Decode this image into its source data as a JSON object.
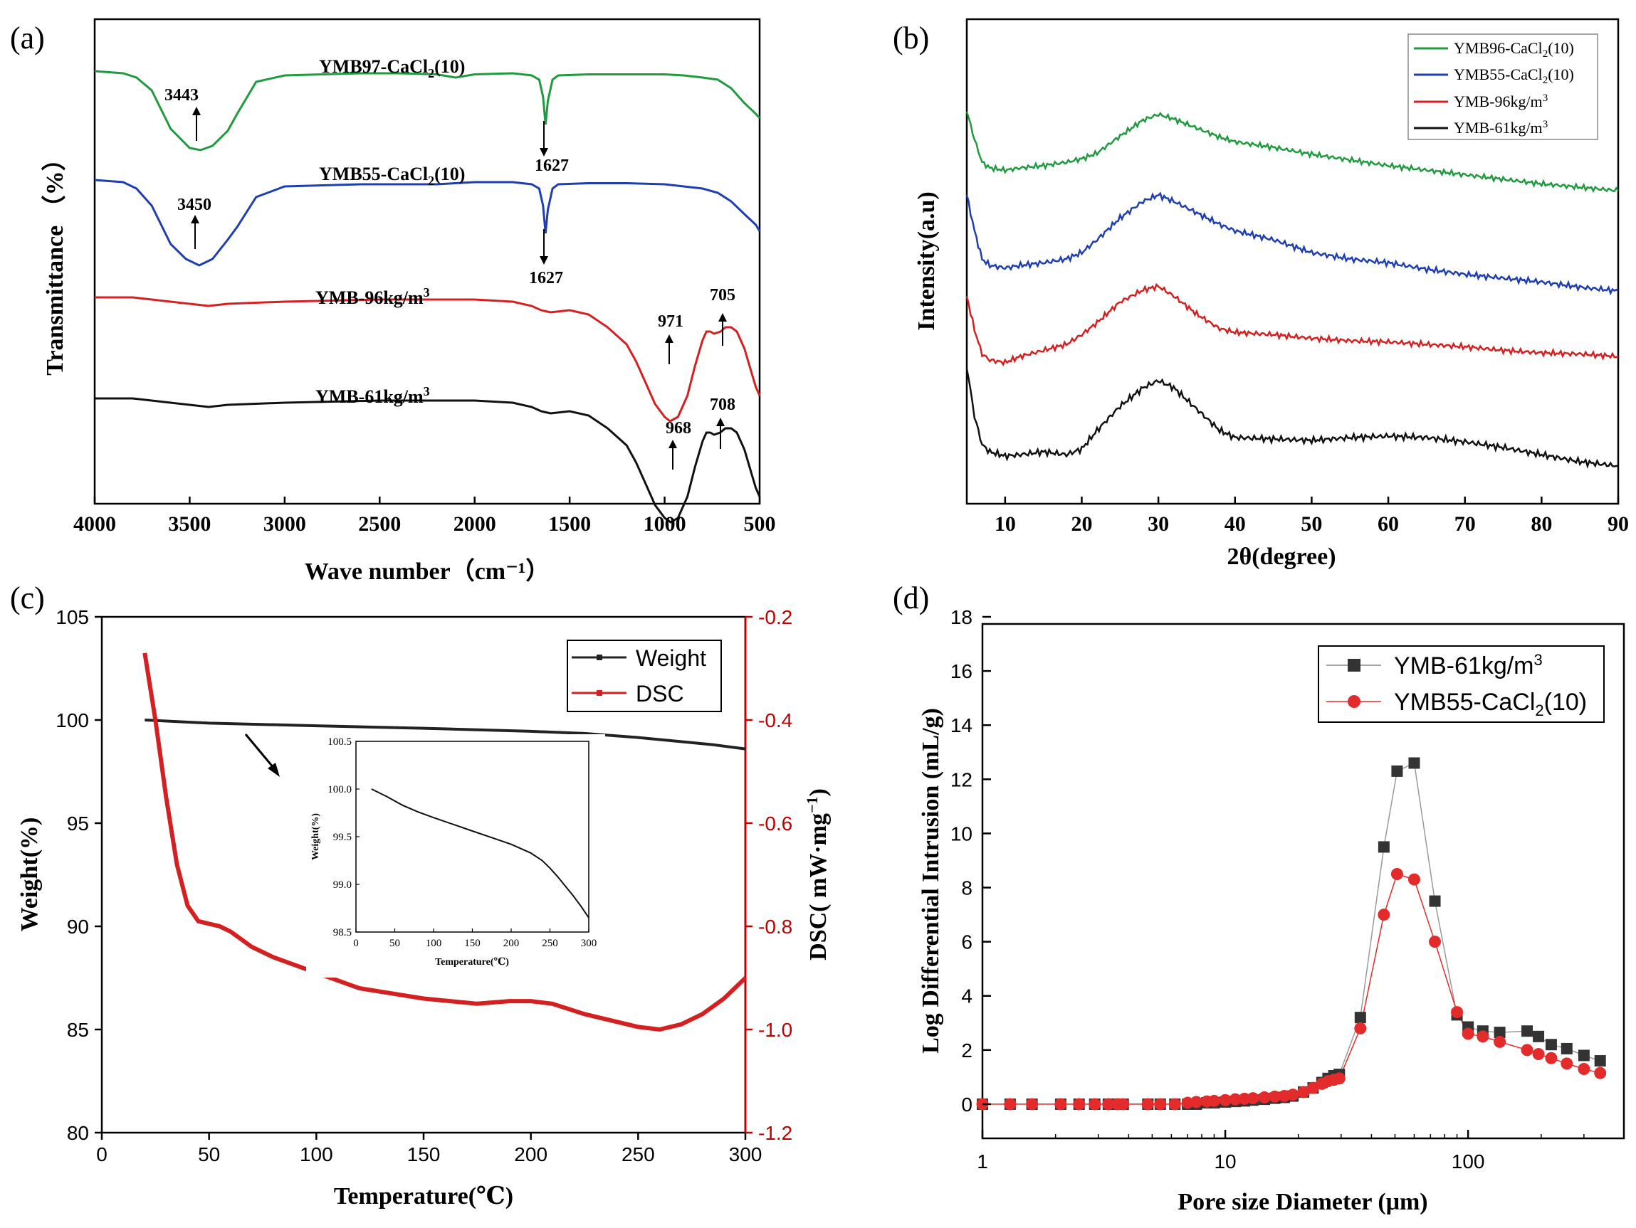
{
  "chart_data": [
    {
      "panel": "(a)",
      "type": "line",
      "title": "",
      "xlabel": "Wave number（cm⁻¹）",
      "ylabel": "Transmittance （%）",
      "xlim": [
        4000,
        500
      ],
      "x_ticks": [
        "4000",
        "3500",
        "3000",
        "2500",
        "2000",
        "1500",
        "1000",
        "500"
      ],
      "series": [
        {
          "name": "YMB97-CaCl₂(10)",
          "color": "#1f9a3e",
          "x": [
            4000,
            3850,
            3780,
            3700,
            3600,
            3500,
            3443,
            3380,
            3300,
            3250,
            3150,
            3000,
            2600,
            2400,
            2200,
            2100,
            2000,
            1800,
            1700,
            1660,
            1640,
            1627,
            1615,
            1590,
            1560,
            1400,
            1200,
            1000,
            900,
            800,
            720,
            650,
            580,
            520,
            500
          ],
          "y": [
            100,
            99,
            97,
            91,
            73,
            64,
            63,
            65,
            72,
            80,
            95,
            98,
            99,
            99,
            98.5,
            97,
            98.5,
            99,
            98,
            96,
            88,
            75,
            86,
            96,
            98,
            98.5,
            98.5,
            98.5,
            98,
            97,
            96,
            92,
            85,
            80,
            78
          ]
        },
        {
          "name": "YMB55-CaCl₂(10)",
          "color": "#1f3eb0",
          "x": [
            4000,
            3850,
            3780,
            3700,
            3600,
            3520,
            3450,
            3380,
            3300,
            3250,
            3150,
            3000,
            2600,
            2400,
            2200,
            2000,
            1800,
            1700,
            1660,
            1640,
            1627,
            1615,
            1590,
            1560,
            1400,
            1200,
            1000,
            900,
            800,
            720,
            650,
            580,
            520,
            500
          ],
          "y": [
            100,
            99,
            96,
            88,
            70,
            63,
            60,
            63,
            72,
            78,
            92,
            97,
            98,
            98,
            98,
            99,
            99,
            98,
            96,
            88,
            75,
            86,
            96,
            98,
            98.5,
            98.5,
            98,
            97,
            96,
            94,
            90,
            84,
            79,
            76
          ]
        },
        {
          "name": "YMB-96kg/m³",
          "color": "#d42020",
          "x": [
            4000,
            3800,
            3700,
            3500,
            3400,
            3300,
            3000,
            2500,
            2200,
            2000,
            1800,
            1700,
            1650,
            1600,
            1500,
            1400,
            1300,
            1200,
            1150,
            1100,
            1050,
            1000,
            971,
            930,
            880,
            840,
            800,
            780,
            760,
            740,
            705,
            680,
            650,
            620,
            580,
            540,
            520,
            500
          ],
          "y": [
            100,
            100,
            99.5,
            98.5,
            98,
            98.5,
            99,
            99.5,
            99.5,
            99.5,
            99,
            98,
            97,
            96.5,
            97,
            96,
            93,
            89,
            85,
            80,
            75,
            72,
            71,
            72,
            77,
            84,
            90,
            92,
            92,
            91.5,
            92,
            93,
            93,
            92,
            88,
            82,
            79,
            77
          ]
        },
        {
          "name": "YMB-61kg/m³",
          "color": "#111111",
          "x": [
            4000,
            3800,
            3700,
            3500,
            3400,
            3300,
            3000,
            2500,
            2200,
            2000,
            1800,
            1700,
            1650,
            1600,
            1500,
            1400,
            1300,
            1200,
            1150,
            1100,
            1050,
            1000,
            968,
            930,
            880,
            840,
            800,
            780,
            760,
            740,
            708,
            680,
            650,
            620,
            580,
            540,
            520,
            500
          ],
          "y": [
            100,
            100,
            99.5,
            98.5,
            98,
            98.5,
            99,
            99.5,
            99.5,
            99.5,
            99,
            98,
            97,
            96.5,
            97,
            96,
            93,
            89,
            85,
            80,
            75,
            72,
            71,
            72,
            77,
            84,
            90,
            92,
            92,
            91.5,
            92,
            93,
            93,
            92,
            88,
            82,
            79,
            77
          ]
        }
      ],
      "annotations": [
        "3443",
        "1627",
        "3450",
        "1627",
        "971",
        "705",
        "968",
        "708"
      ],
      "curve_labels": [
        "YMB97-CaCl₂(10)",
        "YMB55-CaCl₂(10)",
        "YMB-96kg/m³",
        "YMB-61kg/m³"
      ]
    },
    {
      "panel": "(b)",
      "type": "line",
      "title": "",
      "xlabel": "2θ(degree)",
      "ylabel": "Intensity(a.u)",
      "xlim": [
        5,
        90
      ],
      "x_ticks": [
        "10",
        "20",
        "30",
        "40",
        "50",
        "60",
        "70",
        "80",
        "90"
      ],
      "legend": [
        "YMB96-CaCl₂(10)",
        "YMB55-CaCl₂(10)",
        "YMB-96kg/m³",
        "YMB-61kg/m³"
      ],
      "legend_placement": "top-right",
      "series": [
        {
          "name": "YMB96-CaCl₂(10)",
          "color": "#1f9a3e",
          "x": [
            5,
            6,
            7,
            8,
            10,
            12,
            15,
            18,
            20,
            22,
            25,
            28,
            30,
            32,
            35,
            38,
            40,
            45,
            50,
            55,
            60,
            65,
            70,
            75,
            80,
            85,
            90
          ],
          "y": [
            1.0,
            0.75,
            0.55,
            0.5,
            0.48,
            0.5,
            0.52,
            0.55,
            0.58,
            0.63,
            0.78,
            0.92,
            0.97,
            0.93,
            0.85,
            0.77,
            0.73,
            0.68,
            0.62,
            0.57,
            0.52,
            0.48,
            0.44,
            0.4,
            0.36,
            0.33,
            0.3
          ]
        },
        {
          "name": "YMB55-CaCl₂(10)",
          "color": "#1f3eb0",
          "x": [
            5,
            6,
            7,
            8,
            10,
            12,
            15,
            18,
            20,
            22,
            25,
            28,
            30,
            32,
            35,
            38,
            40,
            45,
            50,
            55,
            60,
            65,
            70,
            75,
            80,
            85,
            90
          ],
          "y": [
            1.0,
            0.72,
            0.5,
            0.45,
            0.43,
            0.45,
            0.47,
            0.5,
            0.55,
            0.65,
            0.82,
            0.95,
            1.0,
            0.95,
            0.86,
            0.77,
            0.72,
            0.65,
            0.55,
            0.5,
            0.47,
            0.42,
            0.38,
            0.35,
            0.32,
            0.28,
            0.25
          ]
        },
        {
          "name": "YMB-96kg/m³",
          "color": "#d42020",
          "x": [
            5,
            6,
            7,
            8,
            10,
            12,
            15,
            18,
            20,
            22,
            25,
            28,
            30,
            32,
            35,
            38,
            40,
            45,
            50,
            55,
            60,
            65,
            70,
            75,
            80,
            85,
            90
          ],
          "y": [
            1.0,
            0.72,
            0.52,
            0.47,
            0.45,
            0.5,
            0.55,
            0.6,
            0.68,
            0.78,
            0.95,
            1.05,
            1.08,
            1.0,
            0.85,
            0.73,
            0.7,
            0.68,
            0.65,
            0.63,
            0.62,
            0.6,
            0.58,
            0.55,
            0.53,
            0.52,
            0.5
          ]
        },
        {
          "name": "YMB-61kg/m³",
          "color": "#111111",
          "x": [
            5,
            6,
            7,
            8,
            10,
            12,
            15,
            18,
            20,
            22,
            25,
            28,
            30,
            32,
            35,
            38,
            40,
            45,
            50,
            55,
            60,
            65,
            70,
            75,
            80,
            85,
            90
          ],
          "y": [
            1.0,
            0.65,
            0.45,
            0.4,
            0.37,
            0.38,
            0.4,
            0.38,
            0.42,
            0.55,
            0.72,
            0.85,
            0.9,
            0.85,
            0.7,
            0.55,
            0.5,
            0.49,
            0.48,
            0.5,
            0.51,
            0.5,
            0.47,
            0.43,
            0.38,
            0.33,
            0.3
          ]
        }
      ]
    },
    {
      "panel": "(c)",
      "type": "line",
      "title": "",
      "xlabel": "Temperature(℃)",
      "ylabel": "Weight(%)",
      "y2label": "DSC( mW·mg⁻¹)",
      "xlim": [
        0,
        300
      ],
      "ylim": [
        80,
        105
      ],
      "y2lim": [
        -1.2,
        -0.2
      ],
      "x_ticks": [
        "0",
        "50",
        "100",
        "150",
        "200",
        "250",
        "300"
      ],
      "y_ticks": [
        "80",
        "85",
        "90",
        "95",
        "100",
        "105"
      ],
      "y2_ticks": [
        "-1.2",
        "-1.0",
        "-0.8",
        "-0.6",
        "-0.4",
        "-0.2"
      ],
      "legend": [
        "Weight",
        "DSC"
      ],
      "legend_placement": "top-right",
      "series": [
        {
          "name": "Weight",
          "color": "#222222",
          "axis": "left",
          "x": [
            20,
            50,
            100,
            150,
            200,
            225,
            250,
            270,
            285,
            300
          ],
          "y": [
            100.0,
            99.85,
            99.72,
            99.6,
            99.45,
            99.35,
            99.15,
            98.95,
            98.8,
            98.6
          ]
        },
        {
          "name": "DSC",
          "color": "#d42020",
          "axis": "right",
          "x": [
            20,
            25,
            30,
            35,
            40,
            45,
            50,
            55,
            60,
            70,
            80,
            100,
            120,
            150,
            175,
            190,
            200,
            210,
            225,
            250,
            260,
            270,
            280,
            290,
            300
          ],
          "y": [
            -0.27,
            -0.4,
            -0.55,
            -0.68,
            -0.76,
            -0.79,
            -0.795,
            -0.8,
            -0.81,
            -0.84,
            -0.86,
            -0.89,
            -0.92,
            -0.94,
            -0.95,
            -0.945,
            -0.945,
            -0.95,
            -0.97,
            -0.995,
            -1.0,
            -0.99,
            -0.97,
            -0.94,
            -0.9
          ]
        }
      ],
      "inset": {
        "xlabel": "Temperature(℃)",
        "ylabel": "Weight(%)",
        "xlim": [
          0,
          300
        ],
        "ylim": [
          98.5,
          100.5
        ],
        "x_ticks": [
          "0",
          "50",
          "100",
          "150",
          "200",
          "250",
          "300"
        ],
        "y_ticks": [
          "98.5",
          "99.0",
          "99.5",
          "100.0",
          "100.5"
        ],
        "x": [
          20,
          40,
          60,
          80,
          100,
          125,
          150,
          175,
          200,
          225,
          240,
          250,
          260,
          270,
          280,
          290,
          300
        ],
        "y": [
          100.0,
          99.92,
          99.83,
          99.76,
          99.7,
          99.63,
          99.56,
          99.49,
          99.42,
          99.33,
          99.25,
          99.17,
          99.08,
          98.98,
          98.88,
          98.77,
          98.65
        ]
      }
    },
    {
      "panel": "(d)",
      "type": "scatter",
      "title": "",
      "xlabel": "Pore size Diameter (μm)",
      "ylabel": "Log Differential Intrusion (mL/g)",
      "xscale": "log",
      "xlim": [
        1,
        400
      ],
      "ylim": [
        -1,
        18
      ],
      "x_ticks": [
        "1",
        "10",
        "100"
      ],
      "y_ticks": [
        "0",
        "2",
        "4",
        "6",
        "8",
        "10",
        "12",
        "14",
        "16",
        "18"
      ],
      "legend": [
        "YMB-61kg/m³",
        "YMB55-CaCl₂(10)"
      ],
      "legend_placement": "top-right",
      "series": [
        {
          "name": "YMB-61kg/m³",
          "color": "#333333",
          "marker": "square",
          "x": [
            1,
            1.3,
            1.6,
            2.1,
            2.5,
            2.9,
            3.3,
            3.6,
            3.8,
            4.8,
            5.4,
            6.2,
            7,
            7.6,
            8.4,
            9,
            10,
            11,
            12,
            13,
            14.5,
            16,
            17.5,
            19,
            21,
            23,
            25,
            26.5,
            28,
            29.5,
            36,
            45,
            51,
            60,
            73,
            90,
            100,
            115,
            135,
            175,
            195,
            220,
            255,
            300,
            350
          ],
          "y": [
            0,
            0,
            0,
            0,
            0,
            0,
            0,
            0,
            0,
            0,
            0,
            0,
            0,
            0,
            0.05,
            0.05,
            0.08,
            0.1,
            0.12,
            0.15,
            0.18,
            0.22,
            0.25,
            0.3,
            0.45,
            0.6,
            0.8,
            0.95,
            1.05,
            1.1,
            3.2,
            9.5,
            12.3,
            12.6,
            7.5,
            3.3,
            2.85,
            2.7,
            2.65,
            2.7,
            2.5,
            2.2,
            2.05,
            1.8,
            1.6
          ]
        },
        {
          "name": "YMB55-CaCl₂(10)",
          "color": "#e42b2b",
          "marker": "circle",
          "x": [
            1,
            1.3,
            1.6,
            2.1,
            2.5,
            2.9,
            3.3,
            3.6,
            3.8,
            4.8,
            5.4,
            6.2,
            7,
            7.6,
            8.4,
            9,
            10,
            11,
            12,
            13,
            14.5,
            16,
            17.5,
            19,
            21,
            23,
            25,
            26.5,
            28,
            29.5,
            36,
            45,
            51,
            60,
            73,
            90,
            100,
            115,
            135,
            175,
            195,
            220,
            255,
            300,
            350
          ],
          "y": [
            0,
            0,
            0,
            0,
            0,
            0,
            0,
            0,
            0,
            0,
            0,
            0,
            0.05,
            0.08,
            0.1,
            0.12,
            0.15,
            0.18,
            0.2,
            0.22,
            0.25,
            0.28,
            0.3,
            0.35,
            0.45,
            0.6,
            0.75,
            0.85,
            0.9,
            0.95,
            2.8,
            7.0,
            8.5,
            8.3,
            6.0,
            3.4,
            2.6,
            2.5,
            2.3,
            2.0,
            1.85,
            1.7,
            1.5,
            1.3,
            1.15
          ]
        }
      ]
    }
  ]
}
